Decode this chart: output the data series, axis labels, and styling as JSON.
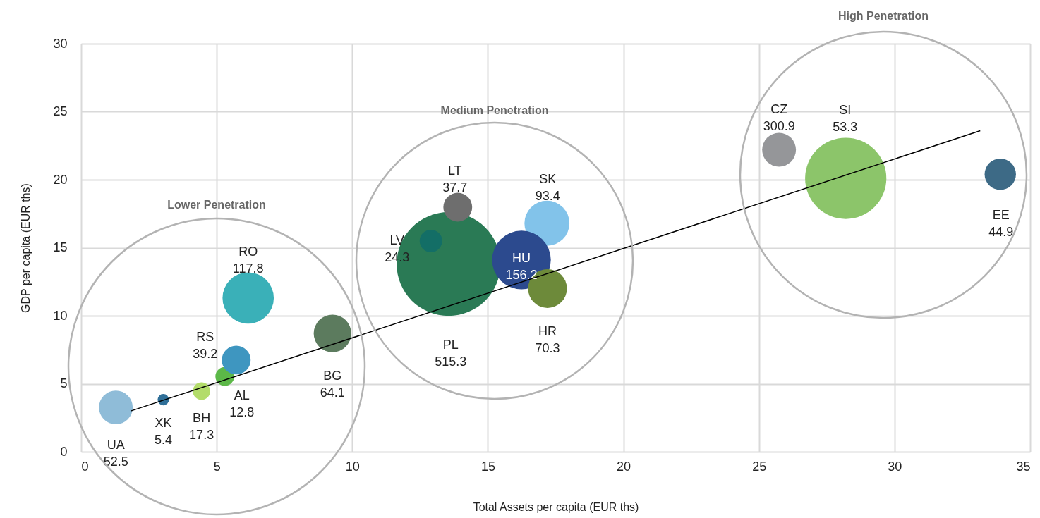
{
  "chart_data": {
    "type": "bubble",
    "xlabel": "Total Assets per capita (EUR ths)",
    "ylabel": "GDP per capita (EUR ths)",
    "xlim": [
      0,
      35
    ],
    "xticks": [
      0,
      5,
      10,
      15,
      20,
      25,
      30,
      35
    ],
    "ylim": [
      0,
      30
    ],
    "yticks": [
      0,
      5,
      10,
      15,
      20,
      25,
      30
    ],
    "grid": true,
    "legend": false,
    "annotations": [
      "Lower Penetration",
      "Medium Penetration",
      "High Penetration"
    ],
    "series": [
      {
        "x": [
          1.28,
          3.03,
          4.44,
          5.3,
          5.72,
          6.16,
          9.27,
          13.55,
          12.9,
          13.89,
          17.18,
          16.24,
          17.2,
          25.74,
          28.2,
          33.9
        ],
        "values": [
          3.26,
          3.83,
          4.46,
          5.54,
          6.74,
          11.3,
          8.7,
          13.8,
          15.5,
          17.98,
          16.8,
          14.1,
          12.0,
          22.2,
          20.1,
          20.4
        ],
        "sizes": [
          0.106,
          0.012,
          0.028,
          0.033,
          0.077,
          0.244,
          0.131,
          1,
          0.047,
          0.077,
          0.188,
          0.32,
          0.14,
          0.106,
          0.613,
          0.091
        ],
        "colors": [
          "#8fbcd8",
          "#2f6f98",
          "#b3dc6a",
          "#5cb848",
          "#3e96c0",
          "#3ab0b8",
          "#5c7b5e",
          "#2a7a55",
          "#136e66",
          "#6e6e6e",
          "#82c3ea",
          "#2c4a8e",
          "#6d8a3a",
          "#959699",
          "#8cc56a",
          "#3d6a86"
        ],
        "value_labels": [
          "UA\n52.5",
          "XK\n5.4",
          "BH\n17.3",
          "AL\n12.8",
          "RS\n39.2",
          "RO\n117.8",
          "BG\n64.1",
          "PL\n515.3",
          "LV\n24.3",
          "LT\n37.7",
          "SK\n93.4",
          "HU\n156.2",
          "HR\n70.3",
          "CZ\n300.9",
          "SI\n53.3",
          "EE\n44.9"
        ]
      },
      {
        "type": "line",
        "x": [
          1.83,
          33.16
        ],
        "values": [
          3.0,
          23.6
        ],
        "color": "#000000"
      }
    ]
  }
}
